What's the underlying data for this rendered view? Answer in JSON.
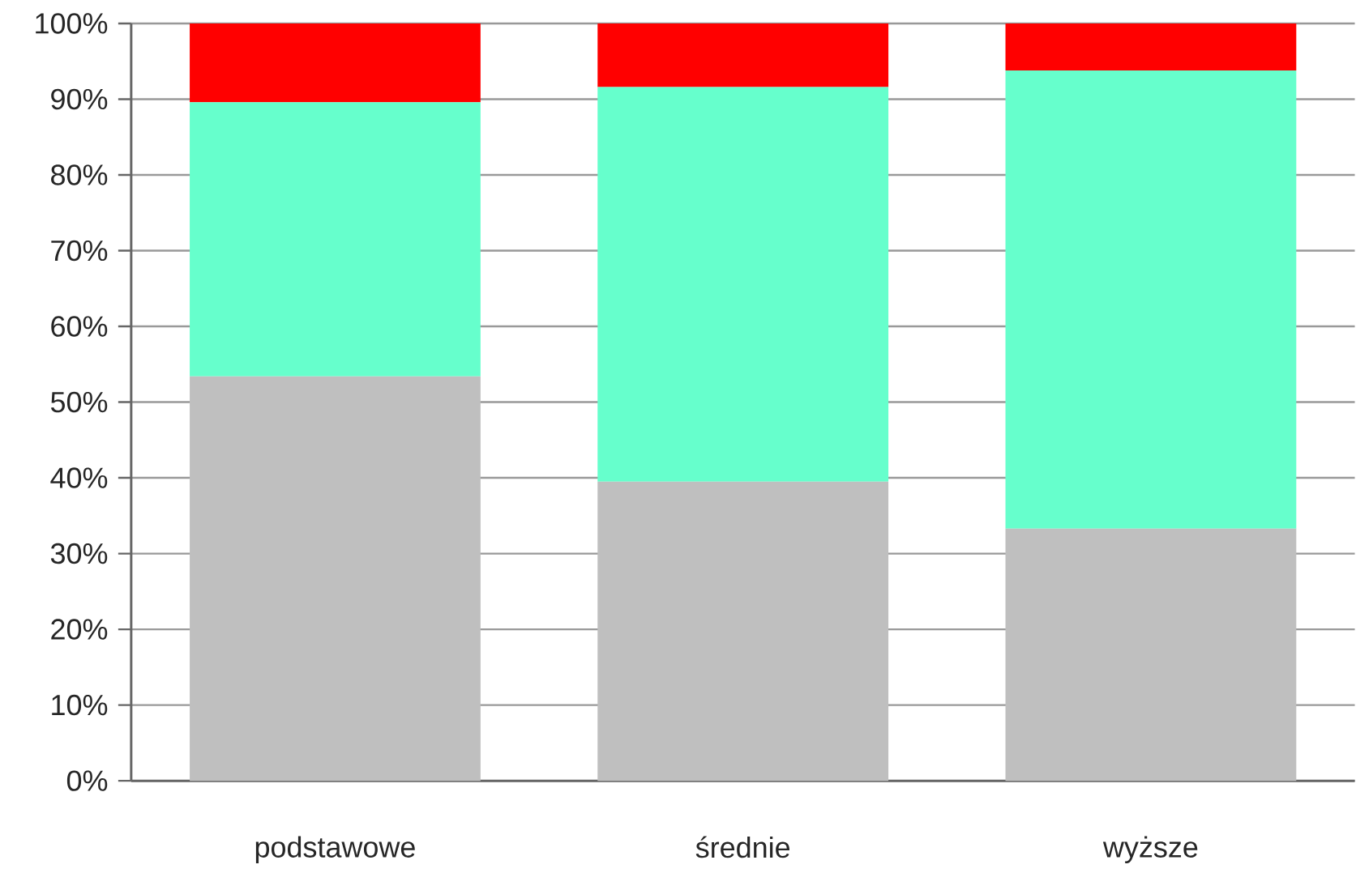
{
  "chart_data": {
    "type": "bar",
    "stacked": true,
    "categories": [
      "podstawowe",
      "średnie",
      "wyższe"
    ],
    "series": [
      {
        "color": "#bfbfbf",
        "values": [
          53.4,
          39.5,
          33.3
        ]
      },
      {
        "color": "#66ffcc",
        "values": [
          36.2,
          52.1,
          60.5
        ]
      },
      {
        "color": "#ff0000",
        "values": [
          10.4,
          8.4,
          6.2
        ]
      }
    ],
    "ylim": [
      0,
      100
    ],
    "yticks": [
      {
        "value": 0,
        "label": "0%"
      },
      {
        "value": 10,
        "label": "10%"
      },
      {
        "value": 20,
        "label": "20%"
      },
      {
        "value": 30,
        "label": "30%"
      },
      {
        "value": 40,
        "label": "40%"
      },
      {
        "value": 50,
        "label": "50%"
      },
      {
        "value": 60,
        "label": "60%"
      },
      {
        "value": 70,
        "label": "70%"
      },
      {
        "value": 80,
        "label": "80%"
      },
      {
        "value": 90,
        "label": "90%"
      },
      {
        "value": 100,
        "label": "100%"
      }
    ],
    "grid": "y"
  }
}
